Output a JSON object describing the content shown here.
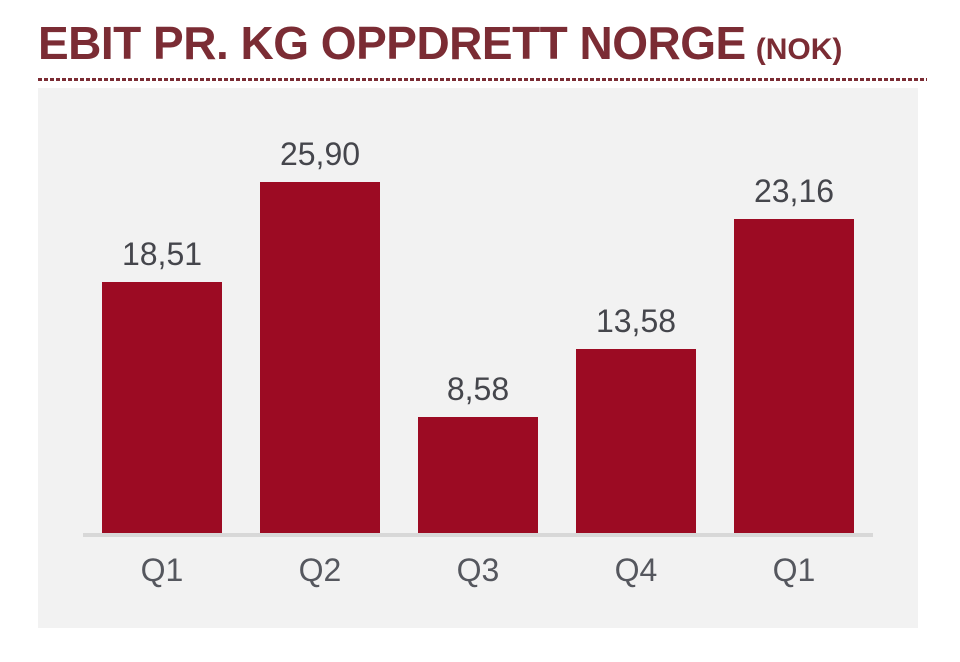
{
  "chart_data": {
    "type": "bar",
    "title": "EBIT PR. KG OPPDRETT NORGE",
    "title_suffix": "(NOK)",
    "categories": [
      "Q1",
      "Q2",
      "Q3",
      "Q4",
      "Q1"
    ],
    "values": [
      18.51,
      25.9,
      8.58,
      13.58,
      23.16
    ],
    "value_labels": [
      "18,51",
      "25,90",
      "8,58",
      "13,58",
      "23,16"
    ],
    "decimal_separator": ",",
    "unit": "NOK",
    "ylim": [
      0,
      33
    ],
    "grid": false,
    "legend": "none",
    "xlabel": "",
    "ylabel": "",
    "bar_color": "#9C0B23",
    "title_color": "#7B2C34",
    "plot_bg": "#F2F2F2",
    "axis_line_color": "#D8D8D8",
    "value_label_color": "#45464C",
    "xlabel_color": "#55575E"
  }
}
